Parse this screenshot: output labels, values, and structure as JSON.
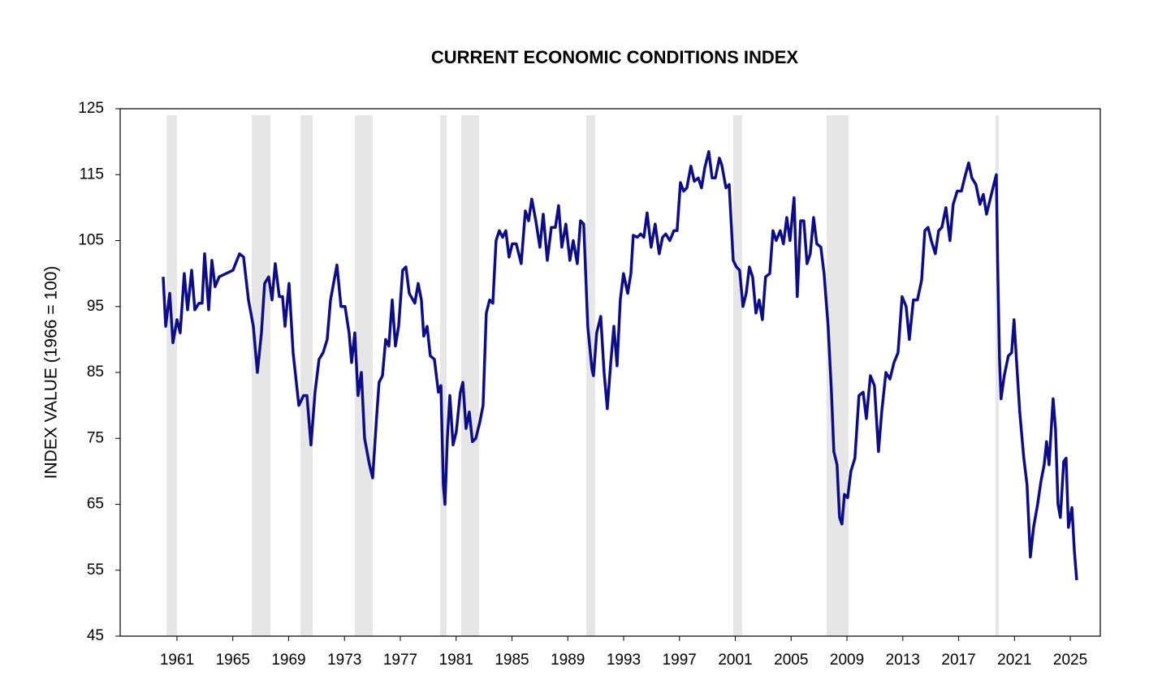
{
  "chart_data": {
    "type": "line",
    "title": "CURRENT ECONOMIC CONDITIONS INDEX",
    "y_label": "INDEX VALUE (1966 = 100)",
    "color": "#0d0d8a",
    "shade_color": "#e6e6e6",
    "xlim": [
      1956.93,
      2027.15
    ],
    "xticks": [
      1961,
      1965,
      1969,
      1973,
      1977,
      1981,
      1985,
      1989,
      1993,
      1997,
      2001,
      2005,
      2009,
      2013,
      2017,
      2021,
      2025
    ],
    "ylim": [
      45,
      125
    ],
    "yticks": [
      45,
      55,
      65,
      75,
      85,
      95,
      105,
      115,
      125
    ],
    "grid": false,
    "shaded_periods": [
      [
        1960.25,
        1961.0
      ],
      [
        1966.35,
        1967.69
      ],
      [
        1969.84,
        1970.72
      ],
      [
        1973.74,
        1975.02
      ],
      [
        1979.85,
        1980.32
      ],
      [
        1981.36,
        1982.64
      ],
      [
        1990.32,
        1990.96
      ],
      [
        2000.85,
        2001.49
      ],
      [
        2007.54,
        2009.11
      ],
      [
        2019.64,
        2019.87
      ]
    ],
    "x": [
      1960.01,
      1960.19,
      1960.48,
      1960.71,
      1961.0,
      1961.23,
      1961.52,
      1961.76,
      1962.05,
      1962.28,
      1962.57,
      1962.8,
      1962.98,
      1963.27,
      1963.5,
      1963.73,
      1964.02,
      1965.01,
      1965.48,
      1965.77,
      1966.12,
      1966.47,
      1966.76,
      1967.05,
      1967.28,
      1967.57,
      1967.81,
      1968.04,
      1968.33,
      1968.56,
      1968.74,
      1969.03,
      1969.32,
      1969.73,
      1970.07,
      1970.31,
      1970.6,
      1970.89,
      1971.18,
      1971.47,
      1971.76,
      1972.0,
      1972.46,
      1972.75,
      1973.04,
      1973.33,
      1973.51,
      1973.74,
      1973.97,
      1974.21,
      1974.44,
      1974.79,
      1975.02,
      1975.31,
      1975.48,
      1975.72,
      1975.95,
      1976.18,
      1976.42,
      1976.65,
      1976.88,
      1977.17,
      1977.4,
      1977.64,
      1978.04,
      1978.28,
      1978.51,
      1978.68,
      1978.92,
      1979.15,
      1979.44,
      1979.73,
      1979.91,
      1980.08,
      1980.2,
      1980.37,
      1980.55,
      1980.78,
      1981.01,
      1981.3,
      1981.48,
      1981.71,
      1981.94,
      1982.17,
      1982.41,
      1982.7,
      1982.93,
      1983.16,
      1983.4,
      1983.63,
      1983.86,
      1984.09,
      1984.33,
      1984.56,
      1984.79,
      1985.02,
      1985.31,
      1985.66,
      1985.96,
      1986.19,
      1986.42,
      1986.71,
      1987.0,
      1987.24,
      1987.53,
      1987.82,
      1988.11,
      1988.34,
      1988.57,
      1988.86,
      1989.15,
      1989.39,
      1989.68,
      1989.91,
      1990.14,
      1990.43,
      1990.73,
      1990.84,
      1991.07,
      1991.36,
      1991.6,
      1991.83,
      1992.06,
      1992.3,
      1992.53,
      1992.76,
      1992.99,
      1993.29,
      1993.52,
      1993.69,
      1993.98,
      1994.22,
      1994.45,
      1994.68,
      1994.97,
      1995.26,
      1995.55,
      1995.79,
      1996.02,
      1996.31,
      1996.6,
      1996.83,
      1997.07,
      1997.3,
      1997.53,
      1997.82,
      1998.06,
      1998.35,
      1998.58,
      1998.81,
      1999.1,
      1999.34,
      1999.57,
      1999.86,
      2000.03,
      2000.33,
      2000.56,
      2000.85,
      2001.08,
      2001.31,
      2001.55,
      2001.78,
      2002.01,
      2002.24,
      2002.48,
      2002.71,
      2002.94,
      2003.17,
      2003.47,
      2003.7,
      2003.93,
      2004.22,
      2004.45,
      2004.69,
      2004.92,
      2005.21,
      2005.44,
      2005.68,
      2005.91,
      2006.14,
      2006.37,
      2006.61,
      2006.84,
      2007.13,
      2007.36,
      2007.65,
      2007.89,
      2008.06,
      2008.29,
      2008.47,
      2008.64,
      2008.82,
      2009.05,
      2009.28,
      2009.57,
      2009.86,
      2010.16,
      2010.39,
      2010.68,
      2010.97,
      2011.26,
      2011.49,
      2011.79,
      2012.08,
      2012.37,
      2012.66,
      2012.95,
      2013.24,
      2013.47,
      2013.76,
      2014.05,
      2014.35,
      2014.58,
      2014.81,
      2015.04,
      2015.33,
      2015.57,
      2015.8,
      2016.09,
      2016.38,
      2016.61,
      2016.9,
      2017.2,
      2017.43,
      2017.72,
      2017.95,
      2018.24,
      2018.53,
      2018.77,
      2019.0,
      2019.23,
      2019.52,
      2019.7,
      2019.81,
      2019.93,
      2020.04,
      2020.27,
      2020.56,
      2020.8,
      2020.97,
      2021.2,
      2021.38,
      2021.67,
      2021.9,
      2022.14,
      2022.37,
      2022.66,
      2022.9,
      2023.13,
      2023.3,
      2023.48,
      2023.77,
      2023.94,
      2024.12,
      2024.29,
      2024.53,
      2024.7,
      2024.87,
      2025.12,
      2025.29,
      2025.46
    ],
    "values": [
      99.5,
      92,
      97,
      89.5,
      93,
      91,
      100,
      94.5,
      100.5,
      94.5,
      95.5,
      95.5,
      103,
      94.5,
      102,
      98,
      99.5,
      100.5,
      103,
      102.5,
      96,
      92,
      85,
      91,
      98.5,
      99.5,
      96,
      101.5,
      96.5,
      96.5,
      92,
      98.5,
      88,
      80,
      81.5,
      81.5,
      74,
      82,
      87,
      88,
      90,
      96,
      101.3,
      95,
      95,
      91,
      86.5,
      91,
      81.5,
      85,
      75,
      71,
      69,
      78.5,
      83.5,
      84.5,
      90,
      89,
      96,
      89,
      92,
      100.5,
      101,
      97,
      95.5,
      98.5,
      96,
      90.5,
      92,
      87.5,
      87,
      82,
      83,
      68,
      65,
      75,
      81.5,
      74,
      76,
      82,
      83.5,
      76.5,
      79,
      74.5,
      75,
      77.5,
      80,
      94,
      96,
      95.5,
      105,
      106.5,
      105.5,
      106.5,
      102.5,
      104.5,
      104.5,
      101.5,
      109.5,
      108,
      111.3,
      108,
      104,
      109,
      102,
      107,
      107,
      110.3,
      104,
      107.5,
      102,
      105,
      101.5,
      108,
      107.5,
      92,
      85.5,
      84.5,
      91,
      93.5,
      85,
      79.5,
      86,
      92,
      86,
      96,
      100,
      97,
      100,
      105.8,
      105.5,
      106,
      105.5,
      109.2,
      104,
      107.5,
      103,
      105.5,
      106,
      105,
      106.5,
      106.5,
      113.8,
      112.5,
      113,
      116.3,
      114,
      114.5,
      113,
      116,
      118.5,
      114.5,
      114.5,
      117.5,
      116.5,
      113,
      113.5,
      102,
      101,
      100.5,
      95,
      97,
      101,
      99.5,
      94,
      96,
      93,
      99.5,
      100,
      106.5,
      105,
      106.5,
      104.5,
      108.5,
      105,
      111.5,
      96.5,
      108,
      108,
      101.5,
      103,
      108.5,
      104.5,
      104,
      100,
      92,
      82,
      73,
      71,
      63,
      62,
      66.5,
      66,
      70,
      72,
      81.5,
      82,
      78,
      84.5,
      83,
      73,
      79,
      85,
      84,
      86.5,
      88,
      96.5,
      95,
      90,
      96,
      96,
      99,
      106.5,
      107,
      105,
      103,
      106.5,
      107,
      110,
      105,
      110.5,
      112.5,
      112.5,
      114.5,
      116.8,
      114.5,
      113.5,
      110.5,
      112,
      109,
      111,
      113.5,
      115,
      100,
      87,
      81,
      84.5,
      87.5,
      88,
      93,
      85,
      79,
      72,
      68,
      57,
      61.5,
      65,
      68.5,
      71,
      74.5,
      71,
      81,
      76.5,
      65,
      63,
      71.5,
      72,
      61.5,
      64.5,
      58,
      53.5
    ]
  }
}
